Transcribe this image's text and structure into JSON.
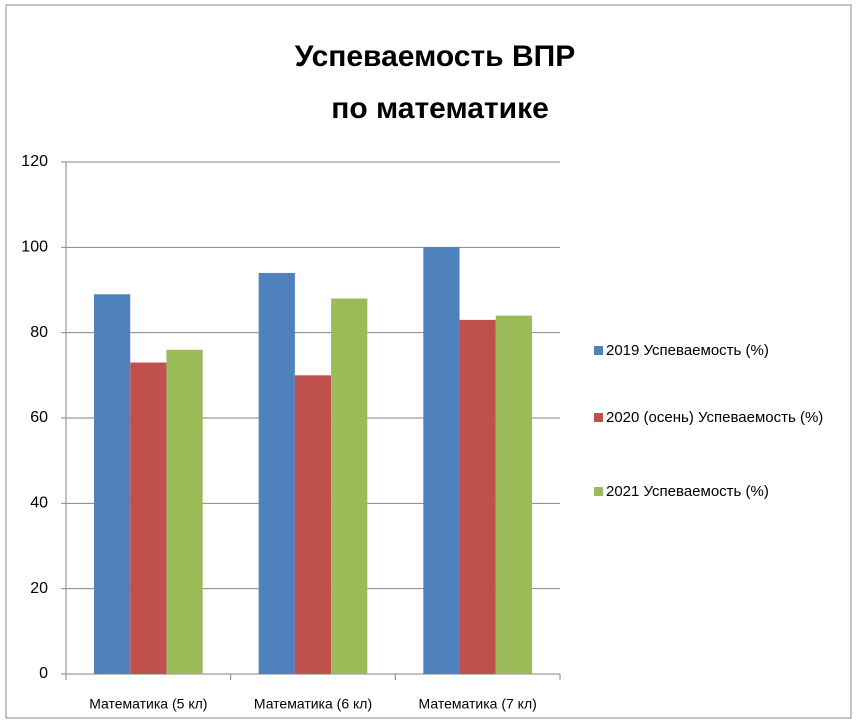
{
  "chart_data": {
    "type": "bar",
    "title": [
      "Успеваемость ВПР",
      "по математике"
    ],
    "categories": [
      "Математика (5 кл)",
      "Математика (6 кл)",
      "Математика (7 кл)"
    ],
    "series": [
      {
        "name": "2019 Успеваемость (%)",
        "color": "#4f81bd",
        "values": [
          89,
          94,
          100
        ]
      },
      {
        "name": "2020 (осень) Успеваемость (%)",
        "color": "#c0504d",
        "values": [
          73,
          70,
          83
        ]
      },
      {
        "name": "2021 Успеваемость (%)",
        "color": "#9bbb59",
        "values": [
          76,
          88,
          84
        ]
      }
    ],
    "ylim": [
      0,
      120
    ],
    "yticks": [
      0,
      20,
      40,
      60,
      80,
      100,
      120
    ],
    "grid": true,
    "legend": "right"
  }
}
